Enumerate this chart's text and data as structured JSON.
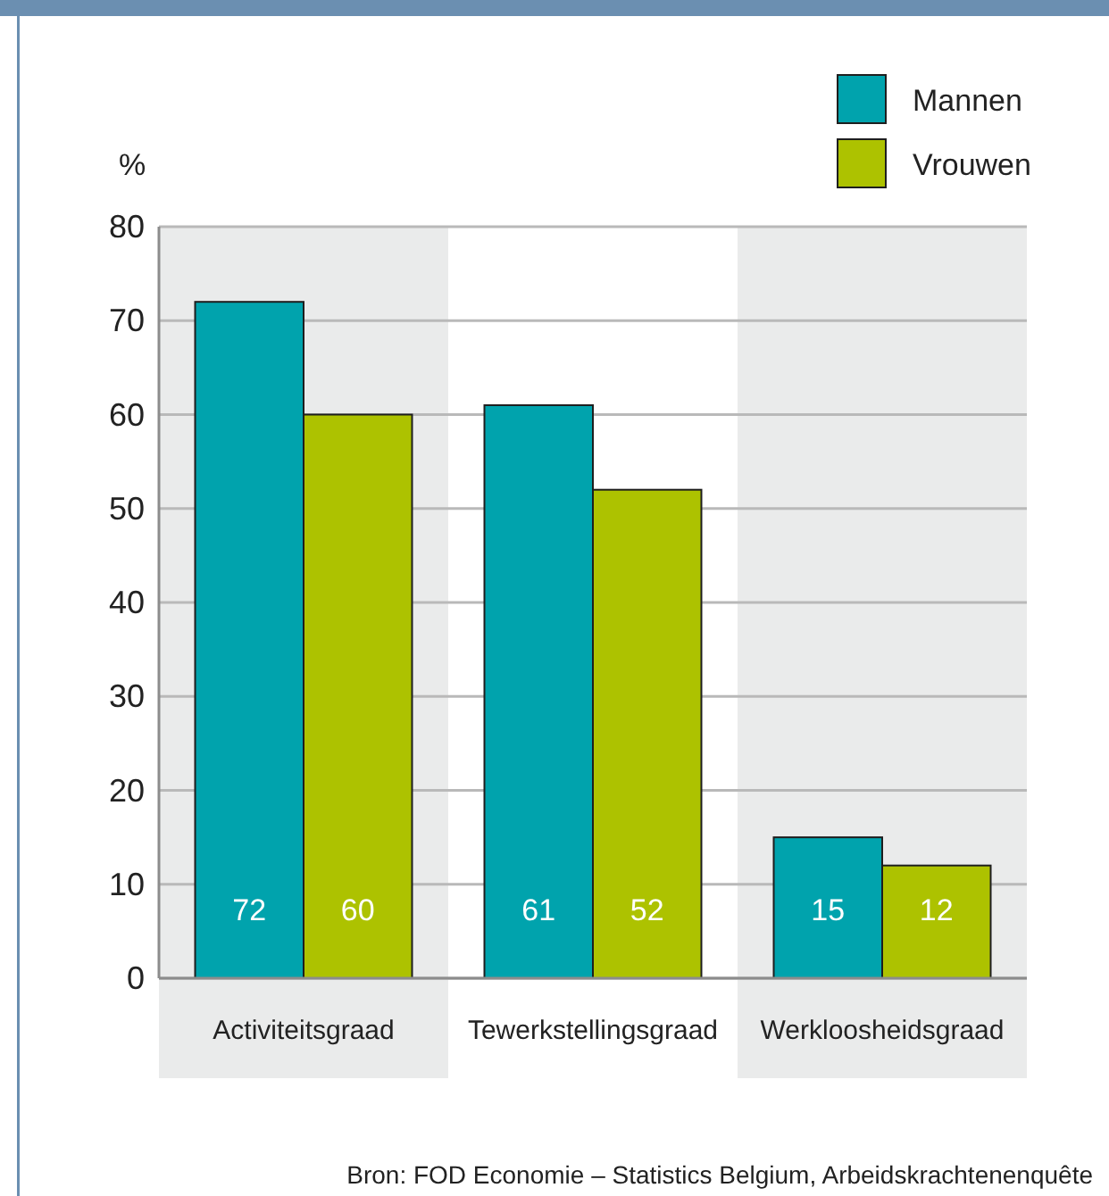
{
  "chart_data": {
    "type": "bar",
    "ylabel": "%",
    "categories": [
      "Activiteitsgraad",
      "Tewerkstellingsgraad",
      "Werkloosheidsgraad"
    ],
    "series": [
      {
        "name": "Mannen",
        "color": "#00a3ad",
        "values": [
          72,
          61,
          15
        ]
      },
      {
        "name": "Vrouwen",
        "color": "#adc200",
        "values": [
          60,
          52,
          12
        ]
      }
    ],
    "ylim": [
      0,
      80
    ],
    "yticks": [
      0,
      10,
      20,
      30,
      40,
      50,
      60,
      70,
      80
    ],
    "grid": "y",
    "legend": "top right",
    "data_labels": true,
    "annotations": [
      "Bron: FOD Economie – Statistics Belgium, Arbeidskrachtenenquête"
    ]
  }
}
